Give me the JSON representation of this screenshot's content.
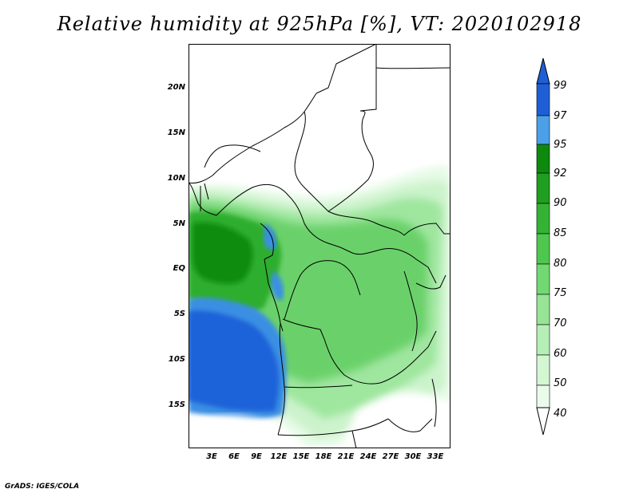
{
  "title": "Relative humidity at 925hPa [%], VT: 2020102918",
  "credit": "GrADS: IGES/COLA",
  "map": {
    "variable": "Relative humidity",
    "level": "925hPa",
    "unit": "%",
    "valid_time": "2020102918",
    "lon_range": [
      0,
      35
    ],
    "lat_range": [
      -20,
      24
    ],
    "lat_ticks": [
      {
        "value": 20,
        "label": "20N"
      },
      {
        "value": 15,
        "label": "15N"
      },
      {
        "value": 10,
        "label": "10N"
      },
      {
        "value": 5,
        "label": "5N"
      },
      {
        "value": 0,
        "label": "EQ"
      },
      {
        "value": -5,
        "label": "5S"
      },
      {
        "value": -10,
        "label": "10S"
      },
      {
        "value": -15,
        "label": "15S"
      }
    ],
    "lon_ticks": [
      {
        "value": 3,
        "label": "3E"
      },
      {
        "value": 6,
        "label": "6E"
      },
      {
        "value": 9,
        "label": "9E"
      },
      {
        "value": 12,
        "label": "12E"
      },
      {
        "value": 15,
        "label": "15E"
      },
      {
        "value": 18,
        "label": "18E"
      },
      {
        "value": 21,
        "label": "21E"
      },
      {
        "value": 24,
        "label": "24E"
      },
      {
        "value": 27,
        "label": "27E"
      },
      {
        "value": 30,
        "label": "30E"
      },
      {
        "value": 33,
        "label": "33E"
      }
    ]
  },
  "colorbar": {
    "levels": [
      "99",
      "97",
      "95",
      "92",
      "90",
      "85",
      "80",
      "75",
      "70",
      "60",
      "50",
      "40"
    ],
    "colors_top_to_bottom": [
      "#1f5fd6",
      "#2e7de0",
      "#4ba0e8",
      "#0d8a0d",
      "#1f9e1f",
      "#34b234",
      "#4fc74f",
      "#72d972",
      "#96e596",
      "#b6efb6",
      "#d3f6d3",
      "#ebfbeb",
      "#ffffff"
    ]
  }
}
